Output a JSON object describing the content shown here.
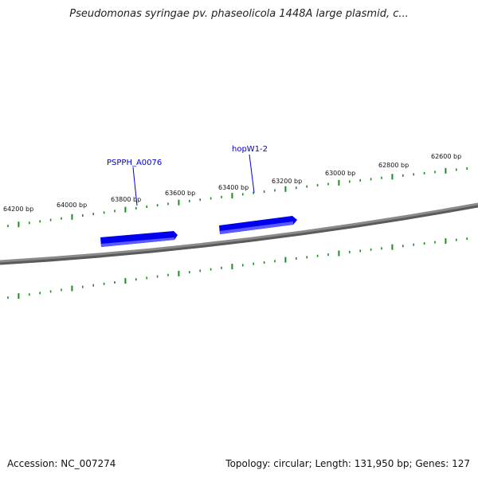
{
  "title": "Pseudomonas syringae pv. phaseolicola 1448A large plasmid, c...",
  "footer": {
    "accession": "Accession: NC_007274",
    "summary": "Topology: circular; Length: 131,950 bp; Genes: 127"
  },
  "colors": {
    "backbone": "#8a8a8a",
    "backbone_shadow": "#5a5a5a",
    "ticks": "#1e8c1e",
    "gene_fill": "#0000ee",
    "gene_label": "#0000cc"
  },
  "tick_labels": [
    "64200 bp",
    "64000 bp",
    "63800 bp",
    "63600 bp",
    "63400 bp",
    "63200 bp",
    "63000 bp",
    "62800 bp",
    "62600 bp"
  ],
  "genes": [
    {
      "label": "PSPPH_A0076"
    },
    {
      "label": "hopW1-2"
    }
  ]
}
